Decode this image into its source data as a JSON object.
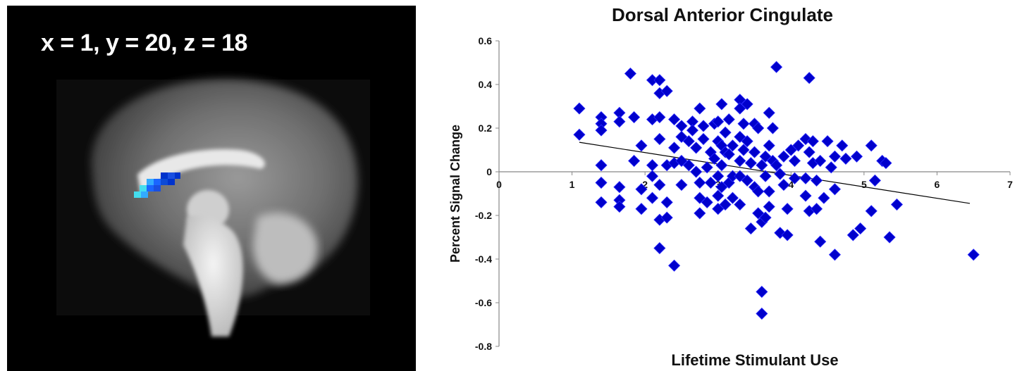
{
  "brain_panel": {
    "coordinate_label": "x = 1, y = 20, z = 18",
    "background_color": "#000000",
    "activation_colors": [
      "#0033cc",
      "#1a66ff",
      "#33aaff",
      "#44ddee"
    ]
  },
  "chart_data": {
    "type": "scatter",
    "title": "Dorsal Anterior Cingulate",
    "xlabel": "Lifetime Stimulant Use",
    "ylabel": "Percent Signal Change",
    "xlim": [
      0,
      7
    ],
    "ylim": [
      -0.8,
      0.6
    ],
    "xticks": [
      "0",
      "1",
      "2",
      "3",
      "4",
      "5",
      "6",
      "7"
    ],
    "yticks": [
      "-0.8",
      "-0.6",
      "-0.4",
      "-0.2",
      "0",
      "0.2",
      "0.4",
      "0.6"
    ],
    "marker_color": "#0000cc",
    "marker_shape": "diamond",
    "grid": false,
    "legend": "none",
    "trendline": {
      "x": [
        1.1,
        6.45
      ],
      "y": [
        0.135,
        -0.145
      ]
    },
    "points": [
      [
        1.1,
        0.29
      ],
      [
        1.1,
        0.17
      ],
      [
        1.4,
        0.25
      ],
      [
        1.4,
        0.22
      ],
      [
        1.4,
        0.19
      ],
      [
        1.4,
        0.03
      ],
      [
        1.4,
        -0.05
      ],
      [
        1.4,
        -0.14
      ],
      [
        1.65,
        0.27
      ],
      [
        1.65,
        0.23
      ],
      [
        1.65,
        -0.07
      ],
      [
        1.65,
        -0.13
      ],
      [
        1.65,
        -0.16
      ],
      [
        1.8,
        0.45
      ],
      [
        1.85,
        0.25
      ],
      [
        1.85,
        0.05
      ],
      [
        1.95,
        0.12
      ],
      [
        1.95,
        -0.08
      ],
      [
        1.95,
        -0.17
      ],
      [
        2.1,
        0.42
      ],
      [
        2.1,
        0.24
      ],
      [
        2.1,
        0.03
      ],
      [
        2.1,
        -0.02
      ],
      [
        2.1,
        -0.12
      ],
      [
        2.2,
        0.42
      ],
      [
        2.2,
        0.36
      ],
      [
        2.2,
        0.25
      ],
      [
        2.2,
        0.15
      ],
      [
        2.2,
        -0.06
      ],
      [
        2.2,
        -0.22
      ],
      [
        2.2,
        -0.35
      ],
      [
        2.3,
        0.37
      ],
      [
        2.3,
        0.03
      ],
      [
        2.3,
        -0.14
      ],
      [
        2.3,
        -0.21
      ],
      [
        2.4,
        0.24
      ],
      [
        2.4,
        0.11
      ],
      [
        2.4,
        0.04
      ],
      [
        2.4,
        -0.43
      ],
      [
        2.5,
        0.21
      ],
      [
        2.5,
        0.16
      ],
      [
        2.5,
        0.05
      ],
      [
        2.5,
        -0.06
      ],
      [
        2.6,
        0.14
      ],
      [
        2.6,
        0.03
      ],
      [
        2.65,
        0.23
      ],
      [
        2.65,
        0.19
      ],
      [
        2.7,
        0.11
      ],
      [
        2.7,
        0.0
      ],
      [
        2.75,
        0.29
      ],
      [
        2.75,
        -0.05
      ],
      [
        2.75,
        -0.12
      ],
      [
        2.75,
        -0.19
      ],
      [
        2.8,
        0.21
      ],
      [
        2.8,
        0.15
      ],
      [
        2.85,
        0.02
      ],
      [
        2.85,
        -0.14
      ],
      [
        2.9,
        0.09
      ],
      [
        2.9,
        -0.05
      ],
      [
        2.95,
        0.22
      ],
      [
        2.95,
        0.06
      ],
      [
        3.0,
        0.23
      ],
      [
        3.0,
        0.14
      ],
      [
        3.0,
        -0.02
      ],
      [
        3.0,
        -0.11
      ],
      [
        3.0,
        -0.17
      ],
      [
        3.05,
        0.31
      ],
      [
        3.05,
        0.12
      ],
      [
        3.05,
        0.03
      ],
      [
        3.05,
        -0.07
      ],
      [
        3.1,
        0.18
      ],
      [
        3.1,
        0.09
      ],
      [
        3.1,
        -0.15
      ],
      [
        3.15,
        0.24
      ],
      [
        3.15,
        0.08
      ],
      [
        3.15,
        -0.05
      ],
      [
        3.2,
        0.12
      ],
      [
        3.2,
        -0.02
      ],
      [
        3.2,
        -0.12
      ],
      [
        3.3,
        0.33
      ],
      [
        3.3,
        0.29
      ],
      [
        3.3,
        0.16
      ],
      [
        3.3,
        0.05
      ],
      [
        3.3,
        -0.02
      ],
      [
        3.3,
        -0.15
      ],
      [
        3.35,
        0.22
      ],
      [
        3.35,
        0.1
      ],
      [
        3.4,
        0.31
      ],
      [
        3.4,
        0.14
      ],
      [
        3.4,
        -0.04
      ],
      [
        3.45,
        0.04
      ],
      [
        3.45,
        -0.26
      ],
      [
        3.5,
        0.22
      ],
      [
        3.5,
        0.09
      ],
      [
        3.5,
        -0.07
      ],
      [
        3.55,
        0.2
      ],
      [
        3.55,
        -0.09
      ],
      [
        3.55,
        -0.19
      ],
      [
        3.6,
        0.03
      ],
      [
        3.6,
        -0.23
      ],
      [
        3.6,
        -0.55
      ],
      [
        3.6,
        -0.65
      ],
      [
        3.65,
        0.07
      ],
      [
        3.65,
        -0.02
      ],
      [
        3.65,
        -0.21
      ],
      [
        3.7,
        0.27
      ],
      [
        3.7,
        0.12
      ],
      [
        3.7,
        -0.09
      ],
      [
        3.7,
        -0.16
      ],
      [
        3.75,
        0.2
      ],
      [
        3.75,
        0.05
      ],
      [
        3.8,
        0.48
      ],
      [
        3.8,
        0.03
      ],
      [
        3.85,
        -0.01
      ],
      [
        3.85,
        -0.28
      ],
      [
        3.9,
        0.07
      ],
      [
        3.9,
        -0.06
      ],
      [
        3.95,
        -0.17
      ],
      [
        3.95,
        -0.29
      ],
      [
        4.0,
        0.1
      ],
      [
        4.05,
        0.05
      ],
      [
        4.05,
        -0.03
      ],
      [
        4.1,
        0.12
      ],
      [
        4.2,
        0.15
      ],
      [
        4.2,
        -0.03
      ],
      [
        4.2,
        -0.11
      ],
      [
        4.25,
        0.43
      ],
      [
        4.25,
        0.09
      ],
      [
        4.25,
        -0.18
      ],
      [
        4.3,
        0.14
      ],
      [
        4.3,
        0.04
      ],
      [
        4.35,
        -0.04
      ],
      [
        4.35,
        -0.17
      ],
      [
        4.4,
        0.05
      ],
      [
        4.4,
        -0.32
      ],
      [
        4.45,
        -0.12
      ],
      [
        4.5,
        0.14
      ],
      [
        4.55,
        0.02
      ],
      [
        4.6,
        0.07
      ],
      [
        4.6,
        -0.08
      ],
      [
        4.6,
        -0.38
      ],
      [
        4.7,
        0.12
      ],
      [
        4.75,
        0.06
      ],
      [
        4.85,
        -0.29
      ],
      [
        4.9,
        0.07
      ],
      [
        4.95,
        -0.26
      ],
      [
        5.1,
        0.12
      ],
      [
        5.1,
        -0.18
      ],
      [
        5.15,
        -0.04
      ],
      [
        5.25,
        0.05
      ],
      [
        5.3,
        0.04
      ],
      [
        5.35,
        -0.3
      ],
      [
        5.45,
        -0.15
      ],
      [
        6.5,
        -0.38
      ]
    ]
  }
}
